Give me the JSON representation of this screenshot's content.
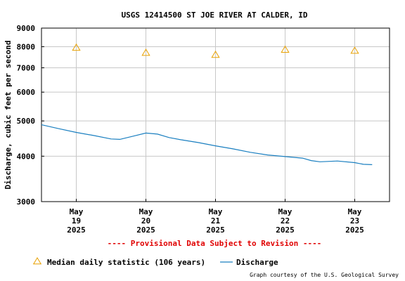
{
  "chart_data": {
    "type": "line",
    "title": "USGS 12414500 ST JOE RIVER AT CALDER, ID",
    "ylabel": "Discharge, cubic feet per second",
    "xlabel": "",
    "y_scale": "log",
    "ylim": [
      3000,
      9000
    ],
    "y_ticks": [
      {
        "value": 3000,
        "label": "3000"
      },
      {
        "value": 4000,
        "label": "4000"
      },
      {
        "value": 5000,
        "label": "5000"
      },
      {
        "value": 6000,
        "label": "6000"
      },
      {
        "value": 7000,
        "label": "7000"
      },
      {
        "value": 8000,
        "label": "8000"
      },
      {
        "value": 9000,
        "label": "9000"
      }
    ],
    "xlim": [
      "2025-05-18T12:00",
      "2025-05-23T12:00"
    ],
    "x_ticks": [
      {
        "value": "2025-05-19T00:00",
        "label": [
          "May",
          "19",
          "2025"
        ]
      },
      {
        "value": "2025-05-20T00:00",
        "label": [
          "May",
          "20",
          "2025"
        ]
      },
      {
        "value": "2025-05-21T00:00",
        "label": [
          "May",
          "21",
          "2025"
        ]
      },
      {
        "value": "2025-05-22T00:00",
        "label": [
          "May",
          "22",
          "2025"
        ]
      },
      {
        "value": "2025-05-23T00:00",
        "label": [
          "May",
          "23",
          "2025"
        ]
      }
    ],
    "grid": true,
    "series": [
      {
        "name": "Median daily statistic (106 years)",
        "kind": "marker",
        "marker": "triangle",
        "color": "#e8a000",
        "points": [
          {
            "x": "2025-05-19T00:00",
            "y": 7950
          },
          {
            "x": "2025-05-20T00:00",
            "y": 7700
          },
          {
            "x": "2025-05-21T00:00",
            "y": 7600
          },
          {
            "x": "2025-05-22T00:00",
            "y": 7850
          },
          {
            "x": "2025-05-23T00:00",
            "y": 7800
          }
        ]
      },
      {
        "name": "Discharge",
        "kind": "line",
        "color": "#1a7fc0",
        "points": [
          {
            "x": "2025-05-18T12:00",
            "y": 4880
          },
          {
            "x": "2025-05-18T18:00",
            "y": 4760
          },
          {
            "x": "2025-05-19T00:00",
            "y": 4650
          },
          {
            "x": "2025-05-19T06:00",
            "y": 4560
          },
          {
            "x": "2025-05-19T12:00",
            "y": 4460
          },
          {
            "x": "2025-05-19T15:00",
            "y": 4450
          },
          {
            "x": "2025-05-19T20:00",
            "y": 4550
          },
          {
            "x": "2025-05-20T00:00",
            "y": 4630
          },
          {
            "x": "2025-05-20T04:00",
            "y": 4600
          },
          {
            "x": "2025-05-20T08:00",
            "y": 4500
          },
          {
            "x": "2025-05-20T12:00",
            "y": 4440
          },
          {
            "x": "2025-05-20T18:00",
            "y": 4360
          },
          {
            "x": "2025-05-21T00:00",
            "y": 4270
          },
          {
            "x": "2025-05-21T06:00",
            "y": 4190
          },
          {
            "x": "2025-05-21T12:00",
            "y": 4100
          },
          {
            "x": "2025-05-21T18:00",
            "y": 4030
          },
          {
            "x": "2025-05-22T00:00",
            "y": 3990
          },
          {
            "x": "2025-05-22T06:00",
            "y": 3950
          },
          {
            "x": "2025-05-22T09:00",
            "y": 3890
          },
          {
            "x": "2025-05-22T12:00",
            "y": 3860
          },
          {
            "x": "2025-05-22T18:00",
            "y": 3880
          },
          {
            "x": "2025-05-23T00:00",
            "y": 3840
          },
          {
            "x": "2025-05-23T03:00",
            "y": 3800
          },
          {
            "x": "2025-05-23T06:00",
            "y": 3790
          }
        ]
      }
    ],
    "annotation": "---- Provisional Data Subject to Revision ----",
    "annotation_color": "#e00000",
    "credit": "Graph courtesy of the U.S. Geological Survey"
  }
}
